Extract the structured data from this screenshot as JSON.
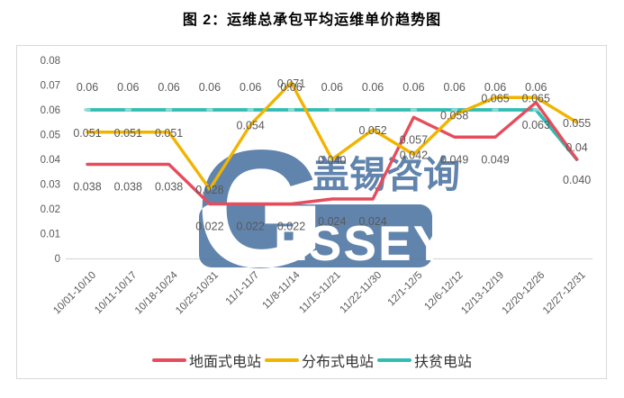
{
  "title": "图 2：运维总承包平均运维单价趋势图",
  "watermark": {
    "big_letter": "G",
    "cn": "盖锡咨询",
    "en": "ESSEY",
    "color": "#4a72a2"
  },
  "colors": {
    "ground_series": "#e64c5c",
    "distributed_series": "#f1b400",
    "poverty_series": "#2fbdb3",
    "axis_text": "#595959",
    "frame_border": "#d9d9d9"
  },
  "chart_data": {
    "type": "line",
    "title": "图 2：运维总承包平均运维单价趋势图",
    "xlabel": "",
    "ylabel": "",
    "ylim": [
      0,
      0.08
    ],
    "grid": false,
    "legend_position": "bottom",
    "yticks": [
      "0.08",
      "0.07",
      "0.06",
      "0.05",
      "0.04",
      "0.03",
      "0.02",
      "0.01",
      "0"
    ],
    "categories": [
      "10/01-10/10",
      "10/11-10/17",
      "10/18-10/24",
      "10/25-10/31",
      "11/1-11/7",
      "11/8-11/14",
      "11/15-11/21",
      "11/22-11/30",
      "12/1-12/5",
      "12/6-12/12",
      "12/13-12/19",
      "12/20-12/26",
      "12/27-12/31"
    ],
    "series": [
      {
        "name": "地面式电站",
        "color": "#e64c5c",
        "values": [
          0.038,
          0.038,
          0.038,
          0.022,
          0.022,
          0.022,
          0.024,
          0.024,
          0.057,
          0.049,
          0.049,
          0.063,
          0.04
        ],
        "labels": [
          "0.038",
          "0.038",
          "0.038",
          "0.022",
          "0.022",
          "0.022",
          "0.024",
          "0.024",
          "0.057",
          "0.049",
          "0.049",
          "0.063",
          "0.04"
        ]
      },
      {
        "name": "分布式电站",
        "color": "#f1b400",
        "values": [
          0.051,
          0.051,
          0.051,
          0.028,
          0.054,
          0.071,
          0.04,
          0.052,
          0.042,
          0.058,
          0.065,
          0.065,
          0.055
        ],
        "labels": [
          "0.051",
          "0.051",
          "0.051",
          "0.028",
          "0.054",
          "0.071",
          "0.040",
          "0.052",
          "0.042",
          "0.058",
          "0.065",
          "0.065",
          "0.055"
        ]
      },
      {
        "name": "扶贫电站",
        "color": "#2fbdb3",
        "values": [
          0.06,
          0.06,
          0.06,
          0.06,
          0.06,
          0.06,
          0.06,
          0.06,
          0.06,
          0.06,
          0.06,
          0.06,
          0.04
        ],
        "labels": [
          "0.06",
          "0.06",
          "0.06",
          "0.06",
          "0.06",
          "0.06",
          "0.06",
          "0.06",
          "0.06",
          "0.06",
          "0.06",
          "0.06",
          "0.040"
        ]
      }
    ]
  }
}
